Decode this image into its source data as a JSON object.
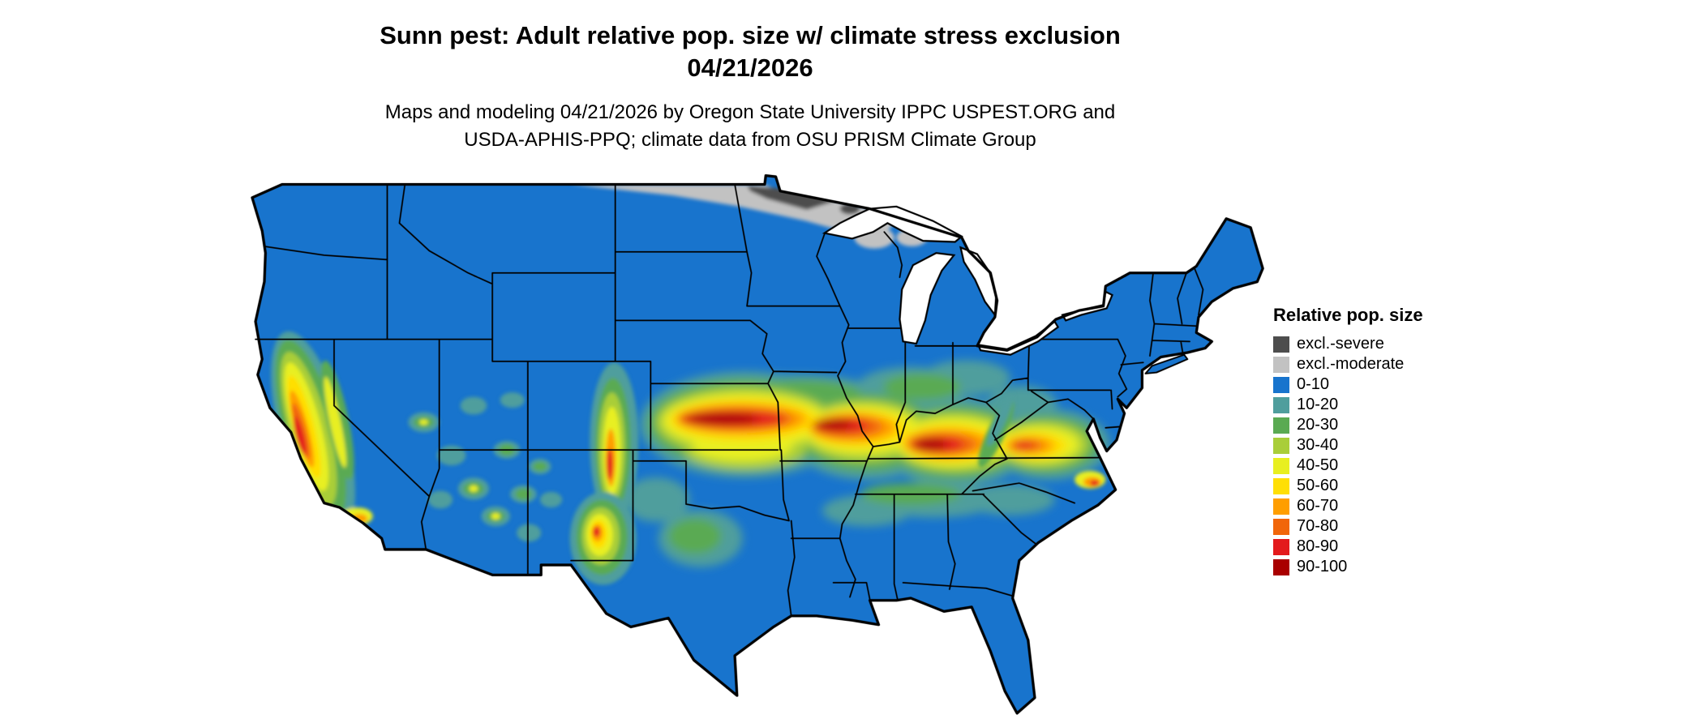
{
  "title": {
    "line1": "Sunn pest: Adult relative pop. size w/ climate stress exclusion",
    "line2": "04/21/2026"
  },
  "subtitle": {
    "line1": "Maps and modeling 04/21/2026 by Oregon State University IPPC USPEST.ORG and",
    "line2": "USDA-APHIS-PPQ; climate data from OSU PRISM Climate Group"
  },
  "legend": {
    "title": "Relative pop. size",
    "items": [
      {
        "label": "excl.-severe",
        "color": "#4d4d4d"
      },
      {
        "label": "excl.-moderate",
        "color": "#c2c2c2"
      },
      {
        "label": "0-10",
        "color": "#1874cd"
      },
      {
        "label": "10-20",
        "color": "#4f9e9d"
      },
      {
        "label": "20-30",
        "color": "#5aaa52"
      },
      {
        "label": "30-40",
        "color": "#a9ce39"
      },
      {
        "label": "40-50",
        "color": "#e8ef20"
      },
      {
        "label": "50-60",
        "color": "#ffdf05"
      },
      {
        "label": "60-70",
        "color": "#ff9e00"
      },
      {
        "label": "70-80",
        "color": "#f1660a"
      },
      {
        "label": "80-90",
        "color": "#e31a1c"
      },
      {
        "label": "90-100",
        "color": "#a90000"
      }
    ]
  },
  "map": {
    "region": "Continental United States",
    "water_color": "#ffffff",
    "state_border_color": "#000000",
    "base_fill_category": "0-10"
  }
}
